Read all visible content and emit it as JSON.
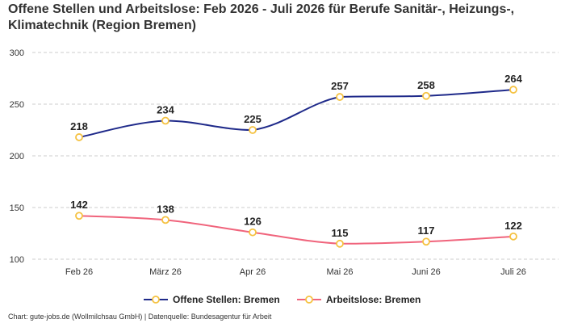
{
  "title": "Offene Stellen und Arbeitslose: Feb 2026 - Juli 2026 für Berufe Sanitär-, Heizungs-, Klimatechnik (Region Bremen)",
  "footer": "Chart: gute-jobs.de (Wollmilchsau GmbH) | Datenquelle: Bundesagentur für Arbeit",
  "chart_data": {
    "type": "line",
    "categories": [
      "Feb 26",
      "März 26",
      "Apr 26",
      "Mai 26",
      "Juni 26",
      "Juli 26"
    ],
    "ylim": [
      100,
      300
    ],
    "yticks": [
      100,
      150,
      200,
      250,
      300
    ],
    "grid": true,
    "legend_position": "bottom-center",
    "series": [
      {
        "name": "Offene Stellen: Bremen",
        "values": [
          218,
          234,
          225,
          257,
          258,
          264
        ],
        "color": "#1f2a8a"
      },
      {
        "name": "Arbeitslose: Bremen",
        "values": [
          142,
          138,
          126,
          115,
          117,
          122
        ],
        "color": "#f0647c"
      }
    ],
    "marker_color": "#f5c242"
  }
}
